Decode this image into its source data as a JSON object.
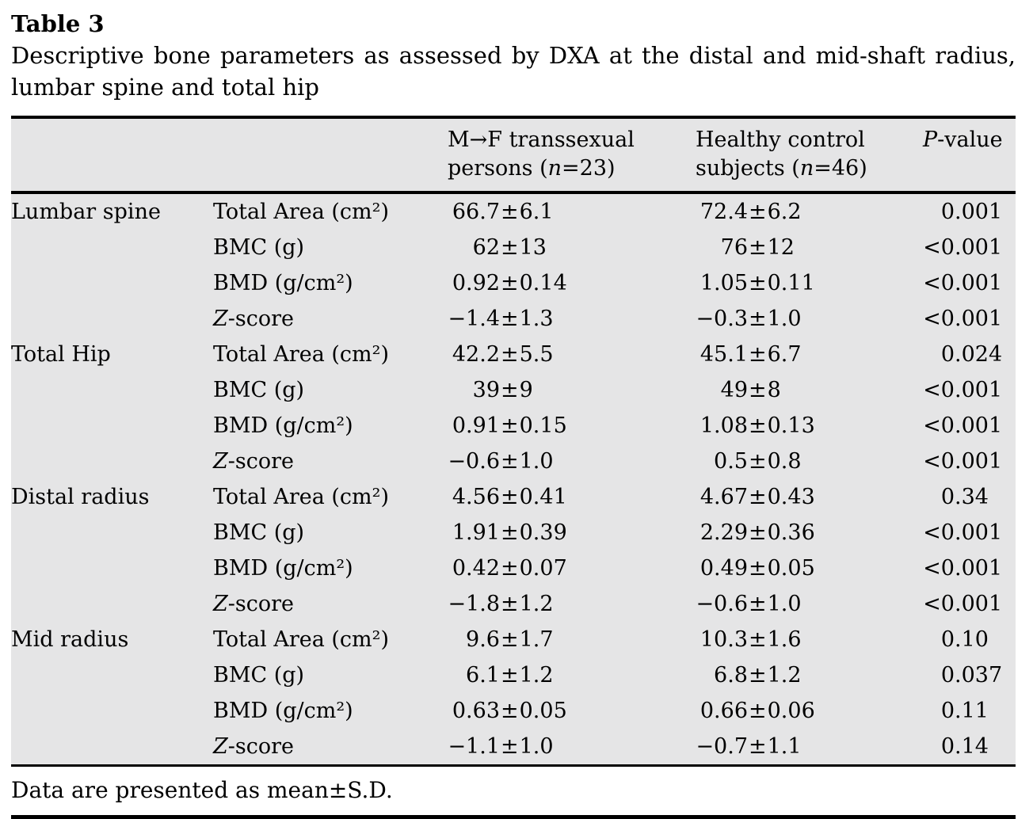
{
  "page": {
    "title": "Table 3",
    "caption": "Descriptive bone parameters as assessed by DXA at the distal and mid-shaft radius, lumbar spine and total hip",
    "footnote": "Data are presented as mean±S.D."
  },
  "table": {
    "header": {
      "transsexual": {
        "line1": "M→F transsexual",
        "line2_pre": "persons (",
        "var": "n",
        "line2_post": "=23)"
      },
      "control": {
        "line1": "Healthy control",
        "line2_pre": "subjects (",
        "var": "n",
        "line2_post": "=46)"
      },
      "pvalue": {
        "italic": "P",
        "rest": "-value"
      }
    },
    "sections": [
      {
        "site": "Lumbar spine",
        "rows": [
          {
            "param": "Total Area (cm²)",
            "transsexual": "66.7±6.1",
            "control": "72.4±6.2",
            "p": "0.001"
          },
          {
            "param": "BMC (g)",
            "transsexual": "62±13",
            "control": "76±12",
            "p": "<0.001"
          },
          {
            "param": "BMD (g/cm²)",
            "transsexual": "0.92±0.14",
            "control": "1.05±0.11",
            "p": "<0.001"
          },
          {
            "param_italic": "Z",
            "param": "-score",
            "transsexual": "−1.4±1.3",
            "control": "−0.3±1.0",
            "p": "<0.001"
          }
        ]
      },
      {
        "site": "Total Hip",
        "rows": [
          {
            "param": "Total Area (cm²)",
            "transsexual": "42.2±5.5",
            "control": "45.1±6.7",
            "p": "0.024"
          },
          {
            "param": "BMC (g)",
            "transsexual": "39±9",
            "control": "49±8",
            "p": "<0.001"
          },
          {
            "param": "BMD (g/cm²)",
            "transsexual": "0.91±0.15",
            "control": "1.08±0.13",
            "p": "<0.001"
          },
          {
            "param_italic": "Z",
            "param": "-score",
            "transsexual": "−0.6±1.0",
            "control": "0.5±0.8",
            "p": "<0.001"
          }
        ]
      },
      {
        "site": "Distal radius",
        "rows": [
          {
            "param": "Total Area (cm²)",
            "transsexual": "4.56±0.41",
            "control": "4.67±0.43",
            "p": "0.34"
          },
          {
            "param": "BMC (g)",
            "transsexual": "1.91±0.39",
            "control": "2.29±0.36",
            "p": "<0.001"
          },
          {
            "param": "BMD (g/cm²)",
            "transsexual": "0.42±0.07",
            "control": "0.49±0.05",
            "p": "<0.001"
          },
          {
            "param_italic": "Z",
            "param": "-score",
            "transsexual": "−1.8±1.2",
            "control": "−0.6±1.0",
            "p": "<0.001"
          }
        ]
      },
      {
        "site": "Mid radius",
        "rows": [
          {
            "param": "Total Area (cm²)",
            "transsexual": "9.6±1.7",
            "control": "10.3±1.6",
            "p": "0.10"
          },
          {
            "param": "BMC (g)",
            "transsexual": "6.1±1.2",
            "control": "6.8±1.2",
            "p": "0.037"
          },
          {
            "param": "BMD (g/cm²)",
            "transsexual": "0.63±0.05",
            "control": "0.66±0.06",
            "p": "0.11"
          },
          {
            "param_italic": "Z",
            "param": "-score",
            "transsexual": "−1.1±1.0",
            "control": "−0.7±1.1",
            "p": "0.14"
          }
        ]
      }
    ]
  },
  "colors": {
    "table_background": "#e5e5e6",
    "rule": "#000000",
    "text": "#000000",
    "page_background": "#ffffff"
  }
}
